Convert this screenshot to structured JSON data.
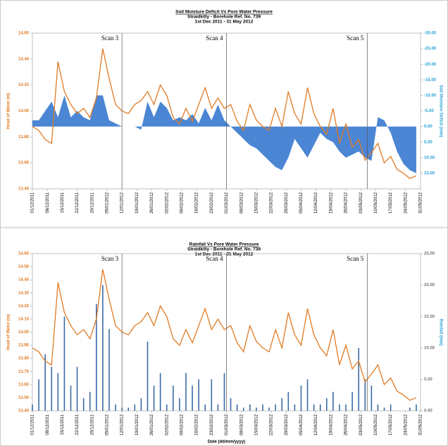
{
  "chart_data": [
    {
      "type": "line",
      "title": "Soil Moisture Deficit Vs Pore Water Pressure",
      "subtitle": [
        "Straidkilly - Borehole Ref. No. 739",
        "1st Dec 2011 - 31 May 2012"
      ],
      "ylabel": "Head of Water (m)",
      "y2label": "Soil Moisture Deficit (mm)",
      "annotations": [
        {
          "text": "Scan 3",
          "x": "12/01/2012"
        },
        {
          "text": "Scan 4",
          "x": "01/03/2012"
        },
        {
          "text": "Scan 5",
          "x": "06/05/2012"
        }
      ],
      "xlim": [
        "01/12/2011",
        "31/05/2012"
      ],
      "xticks": [
        "01/12/2011",
        "08/12/2011",
        "15/12/2011",
        "22/12/2011",
        "29/12/2011",
        "05/01/2012",
        "12/01/2012",
        "19/01/2012",
        "26/01/2012",
        "02/02/2012",
        "09/02/2012",
        "16/02/2012",
        "23/02/2012",
        "01/03/2012",
        "08/03/2012",
        "15/03/2012",
        "22/03/2012",
        "29/03/2012",
        "05/04/2012",
        "12/04/2012",
        "19/04/2012",
        "26/04/2012",
        "03/05/2012",
        "10/05/2012",
        "17/05/2012",
        "24/05/2012",
        "31/05/2012"
      ],
      "ylim": [
        13.4,
        14.6
      ],
      "yticks": [
        {
          "value": 13.4,
          "label": "13.40"
        },
        {
          "value": 13.6,
          "label": "13.60"
        },
        {
          "value": 13.8,
          "label": "13.80"
        },
        {
          "value": 14.0,
          "label": "14.00"
        },
        {
          "value": 14.2,
          "label": "14.20"
        },
        {
          "value": 14.4,
          "label": "14.40"
        },
        {
          "value": 14.6,
          "label": "14.60"
        }
      ],
      "y2lim": [
        20,
        -30
      ],
      "y2ticks": [
        {
          "value": -30,
          "label": "-30.00"
        },
        {
          "value": -25,
          "label": "-25.00"
        },
        {
          "value": -20,
          "label": "-20.00"
        },
        {
          "value": -15,
          "label": "-15.00"
        },
        {
          "value": -10,
          "label": "-10.00"
        },
        {
          "value": -5,
          "label": "-5.00"
        },
        {
          "value": 0,
          "label": "0.00"
        },
        {
          "value": 5,
          "label": "5.00"
        },
        {
          "value": 10,
          "label": "10.00"
        },
        {
          "value": 15,
          "label": "15.00"
        }
      ],
      "x": [
        "01/12/2011",
        "04/12/2011",
        "07/12/2011",
        "10/12/2011",
        "13/12/2011",
        "16/12/2011",
        "19/12/2011",
        "22/12/2011",
        "25/12/2011",
        "28/12/2011",
        "31/12/2011",
        "03/01/2012",
        "06/01/2012",
        "09/01/2012",
        "12/01/2012",
        "15/01/2012",
        "18/01/2012",
        "21/01/2012",
        "24/01/2012",
        "27/01/2012",
        "30/01/2012",
        "02/02/2012",
        "05/02/2012",
        "08/02/2012",
        "11/02/2012",
        "14/02/2012",
        "17/02/2012",
        "20/02/2012",
        "23/02/2012",
        "26/02/2012",
        "29/02/2012",
        "03/03/2012",
        "06/03/2012",
        "09/03/2012",
        "12/03/2012",
        "15/03/2012",
        "18/03/2012",
        "21/03/2012",
        "24/03/2012",
        "27/03/2012",
        "30/03/2012",
        "02/04/2012",
        "05/04/2012",
        "08/04/2012",
        "11/04/2012",
        "14/04/2012",
        "17/04/2012",
        "20/04/2012",
        "23/04/2012",
        "26/04/2012",
        "29/04/2012",
        "02/05/2012",
        "05/05/2012",
        "08/05/2012",
        "11/05/2012",
        "14/05/2012",
        "17/05/2012",
        "20/05/2012",
        "23/05/2012",
        "26/05/2012",
        "29/05/2012"
      ],
      "series": [
        {
          "type": "area",
          "axis": "y2",
          "color": "#4a86d4",
          "values": [
            -2,
            -2,
            -5,
            -8,
            -3,
            -10,
            -3,
            -5,
            -3,
            -2,
            -10,
            -10,
            -2,
            -1,
            0,
            0,
            0,
            1,
            -8,
            -3,
            -8,
            -6,
            -2,
            -3,
            -2,
            -4,
            -1,
            -6,
            -2,
            -7,
            -2,
            0,
            2,
            4,
            6,
            7,
            9,
            11,
            13,
            14,
            10,
            4,
            7,
            10,
            6,
            2,
            4,
            5,
            8,
            10,
            9,
            8,
            10,
            11,
            -3,
            -2,
            2,
            8,
            12,
            14,
            15
          ]
        },
        {
          "type": "line",
          "color": "#e07b24",
          "values": [
            13.88,
            13.85,
            13.78,
            13.75,
            14.38,
            14.15,
            14.05,
            13.98,
            14.02,
            13.95,
            14.1,
            14.48,
            14.25,
            14.05,
            14.0,
            13.98,
            14.05,
            14.08,
            14.15,
            14.05,
            14.2,
            14.12,
            13.95,
            13.9,
            14.02,
            13.92,
            14.05,
            14.18,
            14.02,
            14.1,
            14.02,
            14.05,
            13.92,
            13.85,
            14.05,
            13.93,
            13.88,
            13.85,
            14.02,
            13.88,
            14.15,
            13.98,
            13.9,
            14.18,
            13.98,
            13.88,
            13.82,
            14.02,
            13.75,
            13.9,
            13.72,
            13.78,
            13.62,
            13.68,
            13.75,
            13.6,
            13.65,
            13.55,
            13.52,
            13.48,
            13.5
          ]
        }
      ]
    },
    {
      "type": "line",
      "title": "Rainfall Vs Pore Water Pressure",
      "subtitle": [
        "Straidkilly - Borehole Ref. No. 739",
        "1st Dec 2011 - 31 May 2012"
      ],
      "ylabel": "Head of Water (m)",
      "y2label": "Rainfall (mm)",
      "xlabel": "Date (dd/mm/yyyy)",
      "annotations": [
        {
          "text": "Scan 3",
          "x": "12/01/2012"
        },
        {
          "text": "Scan 4",
          "x": "01/03/2012"
        },
        {
          "text": "Scan 5",
          "x": "06/05/2012"
        }
      ],
      "xlim": [
        "01/12/2011",
        "31/05/2012"
      ],
      "xticks": [
        "01/12/2011",
        "08/12/2011",
        "15/12/2011",
        "22/12/2011",
        "29/12/2011",
        "05/01/2012",
        "12/01/2012",
        "19/01/2012",
        "26/01/2012",
        "02/02/2012",
        "09/02/2012",
        "16/02/2012",
        "23/02/2012",
        "01/03/2012",
        "08/03/2012",
        "15/03/2012",
        "22/03/2012",
        "29/03/2012",
        "05/04/2012",
        "12/04/2012",
        "19/04/2012",
        "26/04/2012",
        "03/05/2012",
        "10/05/2012",
        "17/05/2012",
        "24/05/2012",
        "31/05/2012"
      ],
      "ylim": [
        13.4,
        14.6
      ],
      "yticks": [
        {
          "value": 13.4,
          "label": "13.40"
        },
        {
          "value": 13.5,
          "label": "13.50"
        },
        {
          "value": 13.6,
          "label": "13.60"
        },
        {
          "value": 13.7,
          "label": "13.70"
        },
        {
          "value": 13.8,
          "label": "13.80"
        },
        {
          "value": 13.9,
          "label": "13.90"
        },
        {
          "value": 14.0,
          "label": "14.00"
        },
        {
          "value": 14.1,
          "label": "14.10"
        },
        {
          "value": 14.2,
          "label": "14.20"
        },
        {
          "value": 14.3,
          "label": "14.30"
        },
        {
          "value": 14.4,
          "label": "14.40"
        },
        {
          "value": 14.5,
          "label": "14.50"
        },
        {
          "value": 14.6,
          "label": "14.60"
        }
      ],
      "y2lim": [
        0,
        25
      ],
      "y2ticks": [
        {
          "value": 0,
          "label": "0.00"
        },
        {
          "value": 5,
          "label": "5.00"
        },
        {
          "value": 10,
          "label": "10.00"
        },
        {
          "value": 15,
          "label": "15.00"
        },
        {
          "value": 20,
          "label": "20.00"
        },
        {
          "value": 25,
          "label": "25.00"
        }
      ],
      "x": [
        "01/12/2011",
        "04/12/2011",
        "07/12/2011",
        "10/12/2011",
        "13/12/2011",
        "16/12/2011",
        "19/12/2011",
        "22/12/2011",
        "25/12/2011",
        "28/12/2011",
        "31/12/2011",
        "03/01/2012",
        "06/01/2012",
        "09/01/2012",
        "12/01/2012",
        "15/01/2012",
        "18/01/2012",
        "21/01/2012",
        "24/01/2012",
        "27/01/2012",
        "30/01/2012",
        "02/02/2012",
        "05/02/2012",
        "08/02/2012",
        "11/02/2012",
        "14/02/2012",
        "17/02/2012",
        "20/02/2012",
        "23/02/2012",
        "26/02/2012",
        "29/02/2012",
        "03/03/2012",
        "06/03/2012",
        "09/03/2012",
        "12/03/2012",
        "15/03/2012",
        "18/03/2012",
        "21/03/2012",
        "24/03/2012",
        "27/03/2012",
        "30/03/2012",
        "02/04/2012",
        "05/04/2012",
        "08/04/2012",
        "11/04/2012",
        "14/04/2012",
        "17/04/2012",
        "20/04/2012",
        "23/04/2012",
        "26/04/2012",
        "29/04/2012",
        "02/05/2012",
        "05/05/2012",
        "08/05/2012",
        "11/05/2012",
        "14/05/2012",
        "17/05/2012",
        "20/05/2012",
        "23/05/2012",
        "26/05/2012",
        "29/05/2012"
      ],
      "series": [
        {
          "type": "bar",
          "axis": "y2",
          "color": "#3b6aa8",
          "values": [
            1,
            5,
            9,
            7,
            6,
            15,
            4,
            7,
            2,
            3,
            17,
            20,
            13,
            1,
            0.5,
            0.5,
            1,
            2,
            11,
            4,
            6,
            1,
            4,
            2,
            6,
            4,
            5,
            1,
            5,
            1,
            6,
            2,
            1,
            0.5,
            1,
            0.5,
            1,
            0.5,
            1,
            2,
            3,
            1,
            4,
            5,
            1,
            1,
            2,
            3,
            1,
            1,
            3,
            10,
            5,
            4,
            1,
            0.5,
            1,
            0,
            0,
            0.5,
            1
          ]
        },
        {
          "type": "line",
          "color": "#e07b24",
          "values": [
            13.88,
            13.85,
            13.78,
            13.75,
            14.38,
            14.15,
            14.05,
            13.98,
            14.02,
            13.95,
            14.1,
            14.48,
            14.25,
            14.05,
            14.0,
            13.98,
            14.05,
            14.08,
            14.15,
            14.05,
            14.2,
            14.12,
            13.95,
            13.9,
            14.02,
            13.92,
            14.05,
            14.18,
            14.02,
            14.1,
            14.02,
            14.05,
            13.92,
            13.85,
            14.05,
            13.93,
            13.88,
            13.85,
            14.02,
            13.88,
            14.15,
            13.98,
            13.9,
            14.18,
            13.98,
            13.88,
            13.82,
            14.02,
            13.75,
            13.9,
            13.72,
            13.78,
            13.62,
            13.68,
            13.75,
            13.6,
            13.65,
            13.55,
            13.52,
            13.48,
            13.5
          ]
        }
      ]
    }
  ]
}
